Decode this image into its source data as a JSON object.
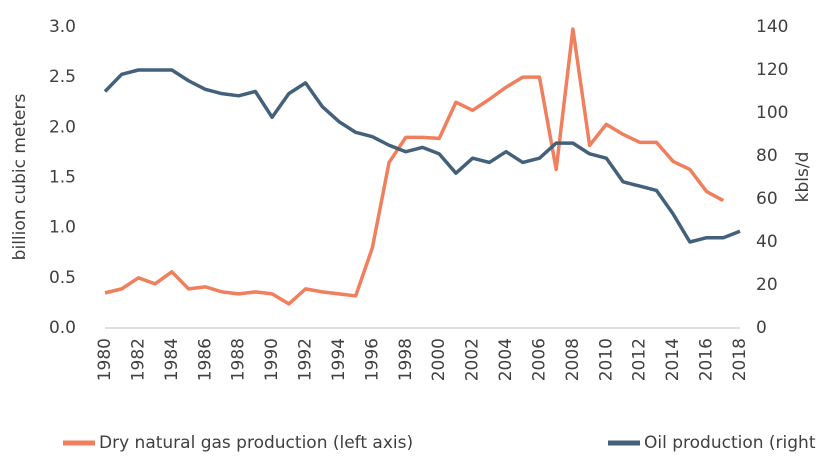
{
  "chart_data": {
    "type": "line",
    "x": [
      1980,
      1981,
      1982,
      1983,
      1984,
      1985,
      1986,
      1987,
      1988,
      1989,
      1990,
      1991,
      1992,
      1993,
      1994,
      1995,
      1996,
      1997,
      1998,
      1999,
      2000,
      2001,
      2002,
      2003,
      2004,
      2005,
      2006,
      2007,
      2008,
      2009,
      2010,
      2011,
      2012,
      2013,
      2014,
      2015,
      2016,
      2017,
      2018
    ],
    "xlim": [
      1980,
      2018
    ],
    "xticks": [
      1980,
      1982,
      1984,
      1986,
      1988,
      1990,
      1992,
      1994,
      1996,
      1998,
      2000,
      2002,
      2004,
      2006,
      2008,
      2010,
      2012,
      2014,
      2016,
      2018
    ],
    "ylabel": "billion cubic meters",
    "y2label": "kbls/d",
    "ylim": [
      0,
      3
    ],
    "yticks": [
      {
        "value": 0,
        "label": "0.0"
      },
      0.5,
      {
        "value": 1,
        "label": "1.0"
      },
      1.5,
      {
        "value": 2,
        "label": "2.0"
      },
      2.5,
      {
        "value": 3,
        "label": "3.0"
      }
    ],
    "y2lim": [
      0,
      140
    ],
    "y2ticks": [
      0,
      20,
      40,
      60,
      80,
      100,
      120,
      140
    ],
    "legend": "bottom",
    "series": [
      {
        "name": "Dry natural gas production (left axis)",
        "color": "#f07f5e",
        "axis": "y",
        "values": [
          0.35,
          0.39,
          0.5,
          0.44,
          0.56,
          0.39,
          0.41,
          0.36,
          0.34,
          0.36,
          0.34,
          0.24,
          0.39,
          0.36,
          0.34,
          0.32,
          0.8,
          1.65,
          1.9,
          1.9,
          1.89,
          2.25,
          2.17,
          2.28,
          2.4,
          2.5,
          2.5,
          1.58,
          2.98,
          1.82,
          2.03,
          1.93,
          1.85,
          1.85,
          1.66,
          1.58,
          1.36,
          1.27,
          null
        ]
      },
      {
        "name": "Oil production (right axis)",
        "color": "#44617b",
        "axis": "y2",
        "values": [
          110,
          118,
          120,
          120,
          120,
          115,
          111,
          109,
          108,
          110,
          98,
          109,
          114,
          103,
          96,
          91,
          89,
          85,
          82,
          84,
          81,
          72,
          79,
          77,
          82,
          77,
          79,
          86,
          86,
          81,
          79,
          68,
          66,
          64,
          53,
          40,
          42,
          42,
          45
        ]
      }
    ]
  }
}
